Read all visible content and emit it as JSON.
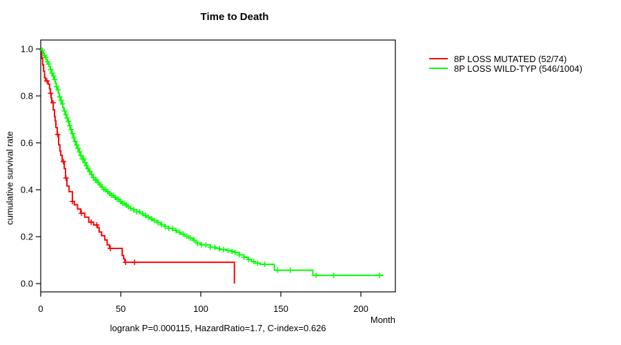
{
  "chart_data": {
    "type": "line",
    "subtype": "kaplan-meier-step-survival",
    "title": "Time to Death",
    "xlabel": "Month",
    "ylabel": "cumulative survival rate",
    "annotation": "logrank P=0.000115, HazardRatio=1.7, C-index=0.626",
    "xlim": [
      0,
      221
    ],
    "ylim": [
      0.0,
      1.04
    ],
    "x_ticks": [
      0,
      50,
      100,
      150,
      200
    ],
    "y_ticks": [
      "0.0",
      "0.2",
      "0.4",
      "0.6",
      "0.8",
      "1.0"
    ],
    "grid": false,
    "legend_position": "top-right-outside",
    "axis_color": "#000000",
    "background_color": "#ffffff",
    "series": [
      {
        "name": "8P LOSS MUTATED (52/74)",
        "color": "#ff0000",
        "steps": [
          [
            0,
            1.0
          ],
          [
            0.7,
            0.96
          ],
          [
            1.2,
            0.932
          ],
          [
            1.8,
            0.905
          ],
          [
            2.4,
            0.878
          ],
          [
            3.0,
            0.864
          ],
          [
            4.6,
            0.85
          ],
          [
            5.5,
            0.831
          ],
          [
            6.0,
            0.811
          ],
          [
            6.5,
            0.791
          ],
          [
            6.9,
            0.771
          ],
          [
            7.8,
            0.741
          ],
          [
            8.6,
            0.712
          ],
          [
            9.0,
            0.694
          ],
          [
            9.5,
            0.665
          ],
          [
            10.3,
            0.635
          ],
          [
            11.2,
            0.592
          ],
          [
            12.0,
            0.565
          ],
          [
            12.5,
            0.547
          ],
          [
            13.4,
            0.52
          ],
          [
            14.7,
            0.49
          ],
          [
            15.5,
            0.45
          ],
          [
            16.4,
            0.416
          ],
          [
            17.7,
            0.392
          ],
          [
            19.8,
            0.35
          ],
          [
            21.0,
            0.336
          ],
          [
            23.0,
            0.318
          ],
          [
            25.0,
            0.3
          ],
          [
            27.5,
            0.283
          ],
          [
            30.0,
            0.262
          ],
          [
            33.0,
            0.25
          ],
          [
            35.5,
            0.238
          ],
          [
            36.5,
            0.22
          ],
          [
            38.0,
            0.204
          ],
          [
            40.0,
            0.186
          ],
          [
            41.5,
            0.165
          ],
          [
            43.0,
            0.15
          ],
          [
            50.9,
            0.12
          ],
          [
            51.8,
            0.105
          ],
          [
            52.6,
            0.091
          ],
          [
            121.0,
            0.0
          ]
        ],
        "censors": [
          3.9,
          6.2,
          7.7,
          10.6,
          14.2,
          15.8,
          19.8,
          25.4,
          31.5,
          35.0,
          43.5,
          53.0,
          58.6
        ]
      },
      {
        "name": "8P LOSS WILD-TYP (546/1004)",
        "color": "#00ff00",
        "steps": [
          [
            0,
            1.0
          ],
          [
            0.6,
            0.995
          ],
          [
            1.1,
            0.988
          ],
          [
            1.7,
            0.98
          ],
          [
            2.2,
            0.972
          ],
          [
            2.8,
            0.964
          ],
          [
            3.4,
            0.955
          ],
          [
            4.0,
            0.945
          ],
          [
            4.6,
            0.936
          ],
          [
            5.2,
            0.926
          ],
          [
            6.0,
            0.912
          ],
          [
            6.9,
            0.897
          ],
          [
            7.5,
            0.885
          ],
          [
            8.2,
            0.87
          ],
          [
            9.0,
            0.855
          ],
          [
            9.7,
            0.84
          ],
          [
            10.3,
            0.826
          ],
          [
            11.0,
            0.811
          ],
          [
            11.6,
            0.796
          ],
          [
            12.3,
            0.781
          ],
          [
            13.0,
            0.766
          ],
          [
            13.8,
            0.751
          ],
          [
            14.5,
            0.736
          ],
          [
            15.2,
            0.721
          ],
          [
            16.0,
            0.706
          ],
          [
            16.8,
            0.691
          ],
          [
            17.7,
            0.673
          ],
          [
            18.5,
            0.656
          ],
          [
            19.4,
            0.639
          ],
          [
            20.3,
            0.622
          ],
          [
            21.1,
            0.606
          ],
          [
            22.0,
            0.591
          ],
          [
            23.0,
            0.576
          ],
          [
            24.0,
            0.561
          ],
          [
            25.0,
            0.546
          ],
          [
            26.0,
            0.531
          ],
          [
            27.0,
            0.516
          ],
          [
            28.0,
            0.502
          ],
          [
            29.0,
            0.49
          ],
          [
            30.2,
            0.478
          ],
          [
            31.5,
            0.465
          ],
          [
            32.8,
            0.452
          ],
          [
            34.0,
            0.441
          ],
          [
            35.3,
            0.431
          ],
          [
            36.6,
            0.421
          ],
          [
            38.0,
            0.411
          ],
          [
            39.4,
            0.401
          ],
          [
            40.9,
            0.392
          ],
          [
            42.4,
            0.384
          ],
          [
            44.0,
            0.376
          ],
          [
            45.6,
            0.368
          ],
          [
            47.2,
            0.359
          ],
          [
            48.9,
            0.35
          ],
          [
            50.6,
            0.342
          ],
          [
            52.4,
            0.335
          ],
          [
            54.2,
            0.328
          ],
          [
            56.0,
            0.321
          ],
          [
            58.0,
            0.314
          ],
          [
            60.0,
            0.306
          ],
          [
            62.0,
            0.298
          ],
          [
            64.0,
            0.29
          ],
          [
            66.0,
            0.283
          ],
          [
            68.0,
            0.276
          ],
          [
            70.0,
            0.269
          ],
          [
            72.5,
            0.26
          ],
          [
            75.0,
            0.251
          ],
          [
            77.5,
            0.243
          ],
          [
            80.0,
            0.235
          ],
          [
            82.5,
            0.227
          ],
          [
            85.0,
            0.219
          ],
          [
            87.5,
            0.211
          ],
          [
            90.0,
            0.202
          ],
          [
            92.5,
            0.194
          ],
          [
            95.0,
            0.185
          ],
          [
            97.0,
            0.172
          ],
          [
            100.0,
            0.165
          ],
          [
            106.0,
            0.155
          ],
          [
            109.0,
            0.149
          ],
          [
            112.0,
            0.145
          ],
          [
            116.0,
            0.141
          ],
          [
            119.0,
            0.137
          ],
          [
            121.0,
            0.133
          ],
          [
            124.0,
            0.122
          ],
          [
            127.0,
            0.112
          ],
          [
            129.5,
            0.102
          ],
          [
            131.5,
            0.094
          ],
          [
            134.0,
            0.087
          ],
          [
            137.0,
            0.082
          ],
          [
            146.0,
            0.057
          ],
          [
            170.0,
            0.035
          ],
          [
            214.0,
            0.035
          ]
        ],
        "censors": [
          1.0,
          2.2,
          3.1,
          4.3,
          5.0,
          6.2,
          7.1,
          8.0,
          8.8,
          9.9,
          10.8,
          11.9,
          12.7,
          13.6,
          14.9,
          15.7,
          16.5,
          17.3,
          18.1,
          19.0,
          19.9,
          20.7,
          21.5,
          22.4,
          23.3,
          24.2,
          25.1,
          26.0,
          26.8,
          27.7,
          28.6,
          29.5,
          30.6,
          31.8,
          32.9,
          34.1,
          35.0,
          36.0,
          37.1,
          38.3,
          39.5,
          40.6,
          41.8,
          43.0,
          44.2,
          45.3,
          46.5,
          47.7,
          48.8,
          50.0,
          51.2,
          52.3,
          53.5,
          54.7,
          56.2,
          58.1,
          60.0,
          61.8,
          63.7,
          65.5,
          67.4,
          69.2,
          71.0,
          73.3,
          75.5,
          77.8,
          80.0,
          82.3,
          84.5,
          86.8,
          89.0,
          91.3,
          93.5,
          95.8,
          98.0,
          100.5,
          103.2,
          106.0,
          108.8,
          111.5,
          114.2,
          117.0,
          119.5,
          121.5,
          124.0,
          127.0,
          130.0,
          133.0,
          135.5,
          140.0,
          148.0,
          156.0,
          172.0,
          183.0,
          211.6
        ]
      }
    ]
  }
}
